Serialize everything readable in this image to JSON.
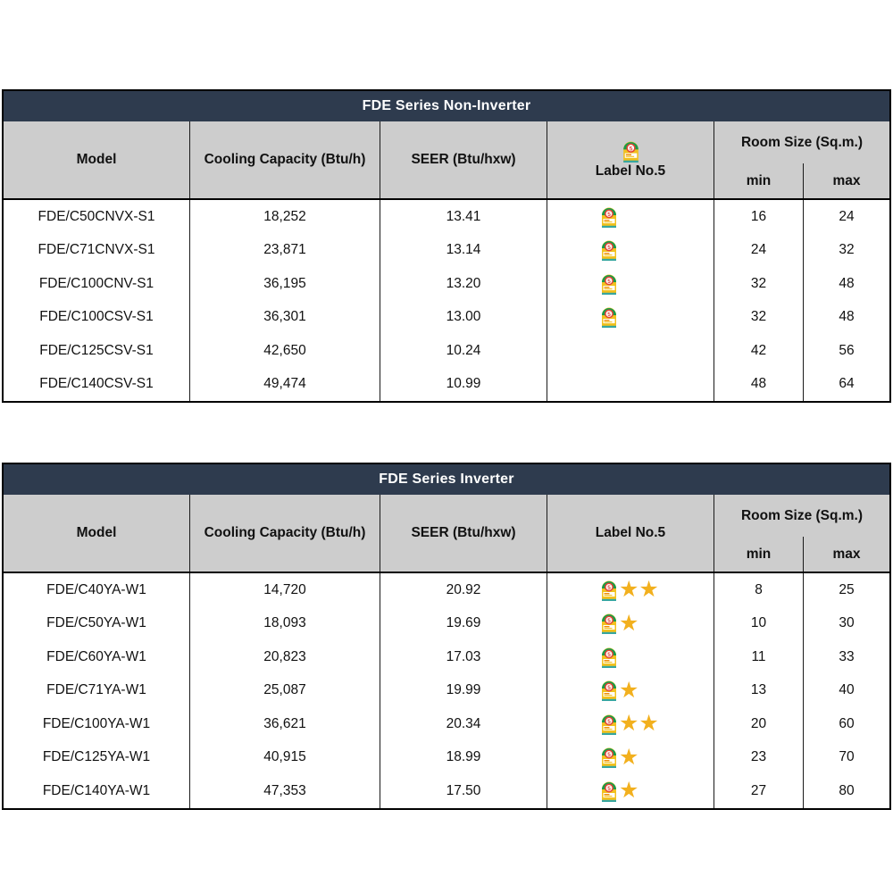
{
  "colors": {
    "title_bar_bg": "#2E3B4E",
    "title_text": "#FFFFFF",
    "header_bg": "#CDCDCD",
    "table_border": "#000000",
    "star": "#F2B01E",
    "label_yellow": "#F2C11E",
    "label_green": "#189B4A",
    "label_red": "#E34234",
    "label_teal": "#37A6A0"
  },
  "icons": {
    "label_no5": "energy-label-no5-icon",
    "star": "star-icon"
  },
  "tables": [
    {
      "title": "FDE Series Non-Inverter",
      "columns": {
        "model": "Model",
        "cooling": "Cooling Capacity (Btu/h)",
        "seer": "SEER (Btu/hxw)",
        "label": "Label No.5",
        "room": "Room Size (Sq.m.)",
        "min": "min",
        "max": "max"
      },
      "header_has_label_icon": true,
      "rows": [
        {
          "model": "FDE/C50CNVX-S1",
          "cooling": "18,252",
          "seer": "13.41",
          "label": true,
          "stars": 0,
          "room_min": "16",
          "room_max": "24"
        },
        {
          "model": "FDE/C71CNVX-S1",
          "cooling": "23,871",
          "seer": "13.14",
          "label": true,
          "stars": 0,
          "room_min": "24",
          "room_max": "32"
        },
        {
          "model": "FDE/C100CNV-S1",
          "cooling": "36,195",
          "seer": "13.20",
          "label": true,
          "stars": 0,
          "room_min": "32",
          "room_max": "48"
        },
        {
          "model": "FDE/C100CSV-S1",
          "cooling": "36,301",
          "seer": "13.00",
          "label": true,
          "stars": 0,
          "room_min": "32",
          "room_max": "48"
        },
        {
          "model": "FDE/C125CSV-S1",
          "cooling": "42,650",
          "seer": "10.24",
          "label": false,
          "stars": 0,
          "room_min": "42",
          "room_max": "56"
        },
        {
          "model": "FDE/C140CSV-S1",
          "cooling": "49,474",
          "seer": "10.99",
          "label": false,
          "stars": 0,
          "room_min": "48",
          "room_max": "64"
        }
      ]
    },
    {
      "title": "FDE Series Inverter",
      "columns": {
        "model": "Model",
        "cooling": "Cooling Capacity (Btu/h)",
        "seer": "SEER (Btu/hxw)",
        "label": "Label No.5",
        "room": "Room Size (Sq.m.)",
        "min": "min",
        "max": "max"
      },
      "header_has_label_icon": false,
      "rows": [
        {
          "model": "FDE/C40YA-W1",
          "cooling": "14,720",
          "seer": "20.92",
          "label": true,
          "stars": 2,
          "room_min": "8",
          "room_max": "25"
        },
        {
          "model": "FDE/C50YA-W1",
          "cooling": "18,093",
          "seer": "19.69",
          "label": true,
          "stars": 1,
          "room_min": "10",
          "room_max": "30"
        },
        {
          "model": "FDE/C60YA-W1",
          "cooling": "20,823",
          "seer": "17.03",
          "label": true,
          "stars": 0,
          "room_min": "11",
          "room_max": "33"
        },
        {
          "model": "FDE/C71YA-W1",
          "cooling": "25,087",
          "seer": "19.99",
          "label": true,
          "stars": 1,
          "room_min": "13",
          "room_max": "40"
        },
        {
          "model": "FDE/C100YA-W1",
          "cooling": "36,621",
          "seer": "20.34",
          "label": true,
          "stars": 2,
          "room_min": "20",
          "room_max": "60"
        },
        {
          "model": "FDE/C125YA-W1",
          "cooling": "40,915",
          "seer": "18.99",
          "label": true,
          "stars": 1,
          "room_min": "23",
          "room_max": "70"
        },
        {
          "model": "FDE/C140YA-W1",
          "cooling": "47,353",
          "seer": "17.50",
          "label": true,
          "stars": 1,
          "room_min": "27",
          "room_max": "80"
        }
      ]
    }
  ]
}
